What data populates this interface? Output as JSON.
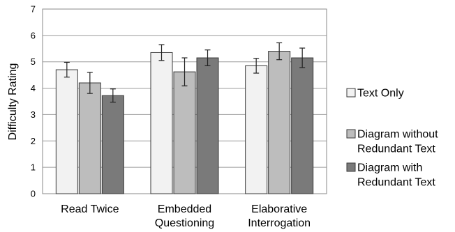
{
  "chart_data": {
    "type": "bar",
    "title": "",
    "xlabel": "",
    "ylabel": "Difficulty Rating",
    "ylim": [
      0,
      7
    ],
    "yticks": [
      "0",
      "1",
      "2",
      "3",
      "4",
      "5",
      "6",
      "7"
    ],
    "categories": [
      [
        "Read Twice"
      ],
      [
        "Embedded",
        "Questioning"
      ],
      [
        "Elaborative",
        "Interrogation"
      ]
    ],
    "series": [
      {
        "name": "Text Only",
        "legend_lines": [
          "Text Only"
        ],
        "color": "#f2f2f2",
        "values": [
          4.7,
          5.35,
          4.85
        ],
        "errors": [
          0.28,
          0.3,
          0.28
        ]
      },
      {
        "name": "Diagram without Redundant Text",
        "legend_lines": [
          "Diagram without",
          "Redundant Text"
        ],
        "color": "#bdbdbd",
        "values": [
          4.2,
          4.62,
          5.4
        ],
        "errors": [
          0.4,
          0.53,
          0.32
        ]
      },
      {
        "name": "Diagram with Redundant Text",
        "legend_lines": [
          "Diagram with",
          "Redundant Text"
        ],
        "color": "#7a7a7a",
        "values": [
          3.72,
          5.15,
          5.15
        ],
        "errors": [
          0.25,
          0.3,
          0.37
        ]
      }
    ],
    "grid": true,
    "legend_position": "right"
  }
}
